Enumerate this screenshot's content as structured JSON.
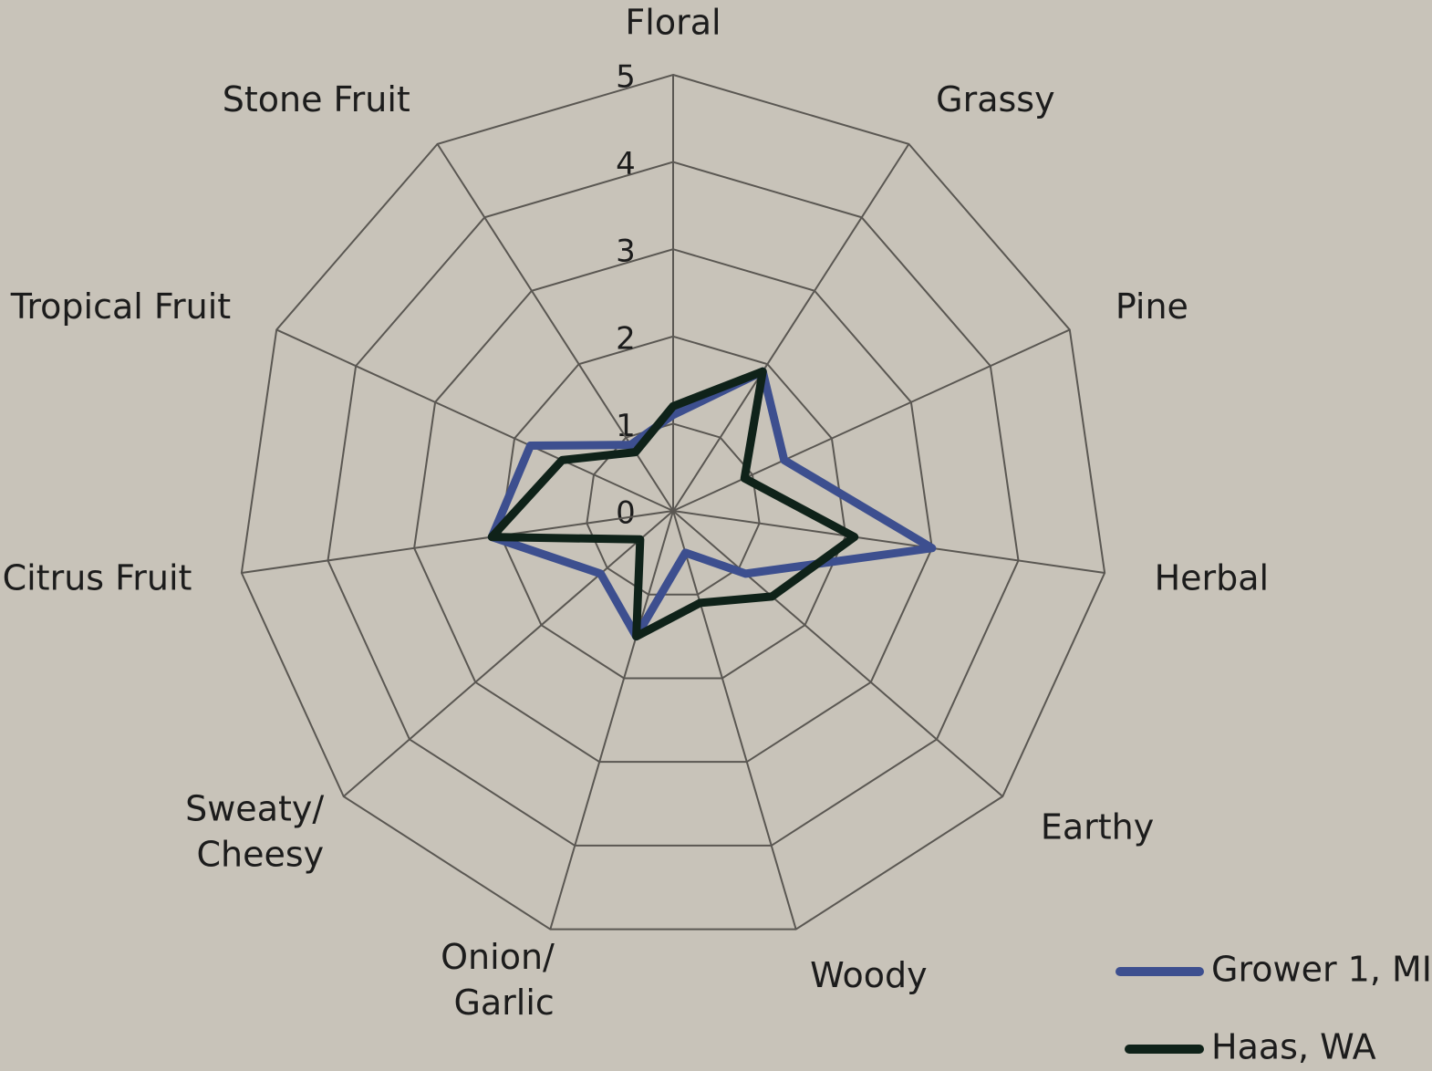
{
  "chart_data": {
    "type": "radar",
    "categories": [
      "Floral",
      "Grassy",
      "Pine",
      "Herbal",
      "Earthy",
      "Woody",
      [
        "Onion/",
        "Garlic"
      ],
      [
        "Sweaty/",
        "Cheesy"
      ],
      "Citrus Fruit",
      "Tropical Fruit",
      "Stone Fruit"
    ],
    "series": [
      {
        "name": "Grower 1, MI",
        "color": "#3d4f8f",
        "values": [
          1.1,
          1.9,
          1.4,
          3.0,
          1.1,
          0.5,
          1.5,
          1.1,
          2.1,
          1.8,
          0.9
        ]
      },
      {
        "name": "Haas, WA",
        "color": "#0f2219",
        "values": [
          1.2,
          1.9,
          0.9,
          2.1,
          1.5,
          1.1,
          1.5,
          0.5,
          2.1,
          1.4,
          0.8
        ]
      }
    ],
    "ylim": [
      0,
      5
    ],
    "yticks": [
      0,
      1,
      2,
      3,
      4,
      5
    ],
    "grid": true,
    "legend": "lower right"
  }
}
